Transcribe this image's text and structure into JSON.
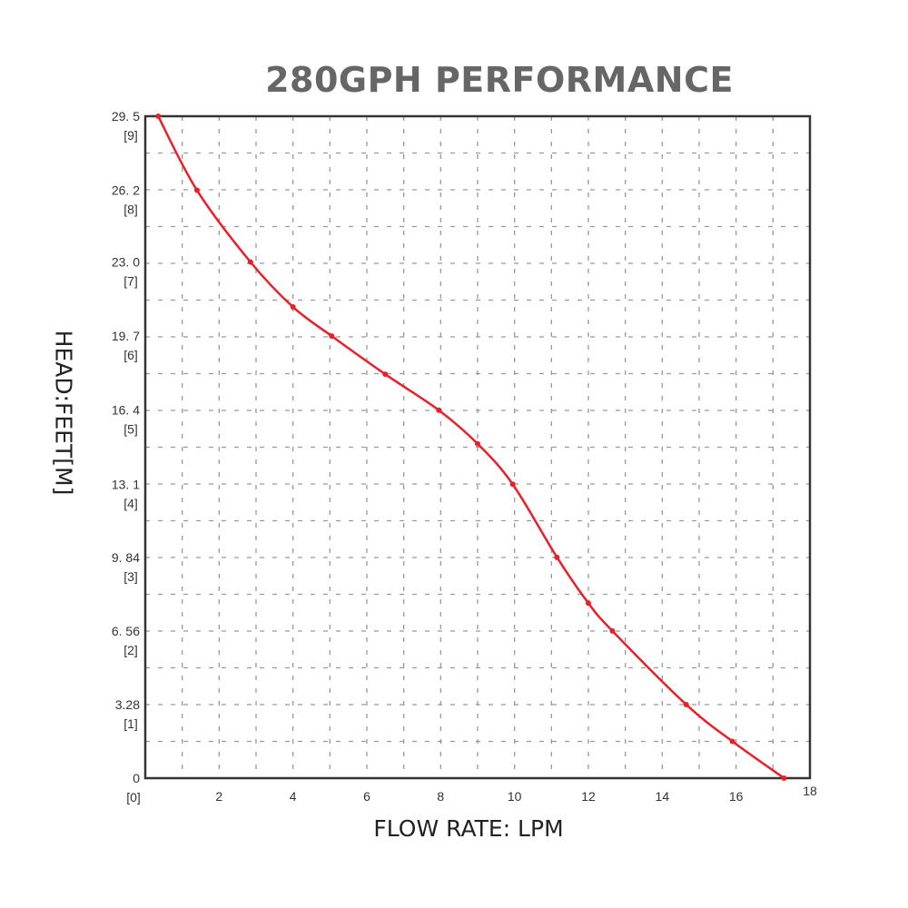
{
  "chart_data": {
    "type": "line",
    "title": "280GPH PERFORMANCE",
    "xlabel": "FLOW RATE: LPM",
    "ylabel": "HEAD:FEET[M]",
    "xlim": [
      0,
      18
    ],
    "ylim": [
      0,
      29.5
    ],
    "grid": true,
    "x_ticks": [
      "2",
      "4",
      "6",
      "8",
      "10",
      "12",
      "14",
      "16",
      "18"
    ],
    "x_tick_values": [
      2,
      4,
      6,
      8,
      10,
      12,
      14,
      16,
      18
    ],
    "y_ticks": [
      {
        "value": 0,
        "feet": "0",
        "meters": "[0]"
      },
      {
        "value": 3.28,
        "feet": "3.28",
        "meters": "[1]"
      },
      {
        "value": 6.56,
        "feet": "6. 56",
        "meters": "[2]"
      },
      {
        "value": 9.84,
        "feet": "9. 84",
        "meters": "[3]"
      },
      {
        "value": 13.1,
        "feet": "13. 1",
        "meters": "[4]"
      },
      {
        "value": 16.4,
        "feet": "16. 4",
        "meters": "[5]"
      },
      {
        "value": 19.7,
        "feet": "19. 7",
        "meters": "[6]"
      },
      {
        "value": 23.0,
        "feet": "23. 0",
        "meters": "[7]"
      },
      {
        "value": 26.2,
        "feet": "26. 2",
        "meters": "[8]"
      },
      {
        "value": 29.5,
        "feet": "29. 5",
        "meters": "[9]"
      }
    ],
    "series": [
      {
        "name": "280GPH",
        "color": "#e8202a",
        "x": [
          0.35,
          1.4,
          2.85,
          4.0,
          5.05,
          6.5,
          7.95,
          9.0,
          9.95,
          11.15,
          12.0,
          12.65,
          14.65,
          15.9,
          17.3
        ],
        "y": [
          29.5,
          26.2,
          23.0,
          21.0,
          19.7,
          18.0,
          16.4,
          14.9,
          13.1,
          9.84,
          7.8,
          6.56,
          3.28,
          1.64,
          0
        ]
      }
    ]
  }
}
